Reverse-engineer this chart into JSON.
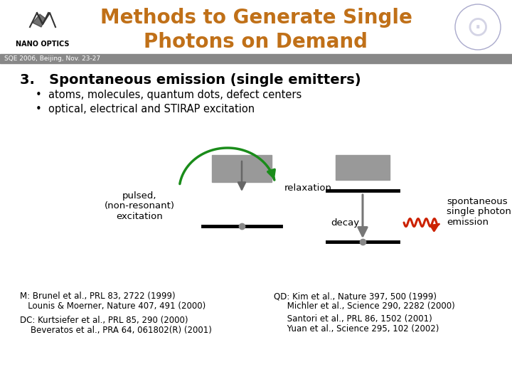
{
  "title_line1": "Methods to Generate Single",
  "title_line2": "Photons on Demand",
  "title_color": "#c07018",
  "subtitle_bar_text": "SQE 2006, Beijing, Nov. 23-27",
  "subtitle_bar_bg": "#888888",
  "section_number": "3.",
  "section_title": "Spontaneous emission (single emitters)",
  "bullet1": "atoms, molecules, quantum dots, defect centers",
  "bullet2": "optical, electrical and STIRAP excitation",
  "label_pulsed": "pulsed,\n(non-resonant)\nexcitation",
  "label_relaxation": "relaxation",
  "label_decay": "decay",
  "label_spontaneous": "spontaneous\nsingle photon\nemission",
  "ref_left1": "M: Brunel et al., PRL 83, 2722 (1999)",
  "ref_left2": "   Lounis & Moerner, Nature 407, 491 (2000)",
  "ref_left3": "DC: Kurtsiefer et al., PRL 85, 290 (2000)",
  "ref_left4": "    Beveratos et al., PRA 64, 061802(R) (2001)",
  "ref_right1": "QD: Kim et al., Nature 397, 500 (1999)",
  "ref_right2": "     Michler et al., Science 290, 2282 (2000)",
  "ref_right3": "     Santori et al., PRL 86, 1502 (2001)",
  "ref_right4": "     Yuan et al., Science 295, 102 (2002)",
  "bg_color": "#ffffff",
  "gray_rect": "#999999",
  "black": "#000000",
  "green": "#1a8c1a",
  "red": "#cc2200",
  "gray_arrow": "#888888"
}
